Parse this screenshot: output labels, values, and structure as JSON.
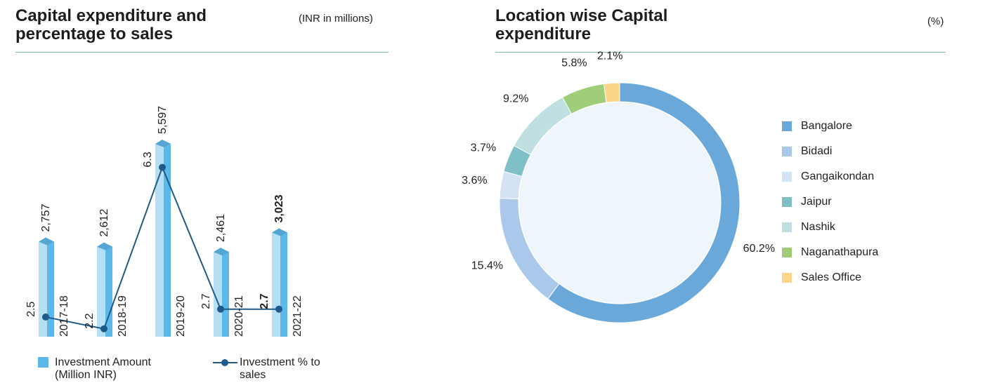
{
  "chart_data": [
    {
      "type": "bar",
      "title": "Capital expenditure and percentage to sales",
      "subtitle": "(INR in millions)",
      "categories": [
        "2017-18",
        "2018-19",
        "2019-20",
        "2020-21",
        "2021-22"
      ],
      "series": [
        {
          "name": "Investment Amount (Million INR)",
          "color": "#5bb8e8",
          "values": [
            2757,
            2612,
            5597,
            2461,
            3023
          ],
          "value_labels": [
            "2,757",
            "2,612",
            "5,597",
            "2,461",
            "3,023"
          ]
        },
        {
          "name": "Investment % to sales",
          "color": "#1f5a8a",
          "axis": "y2",
          "values": [
            2.5,
            2.2,
            6.3,
            2.7,
            2.7
          ]
        }
      ],
      "ylim": [
        0,
        8000
      ],
      "y2lim": [
        2,
        9
      ]
    },
    {
      "type": "pie",
      "title": "Location wise Capital expenditure",
      "subtitle": "(%)",
      "categories": [
        "Bangalore",
        "Bidadi",
        "Gangaikondan",
        "Jaipur",
        "Nashik",
        "Naganathapura",
        "Sales Office"
      ],
      "values": [
        60.2,
        15.4,
        3.6,
        3.7,
        9.2,
        5.8,
        2.1
      ],
      "value_labels": [
        "60.2%",
        "15.4%",
        "3.6%",
        "3.7%",
        "9.2%",
        "5.8%",
        "2.1%"
      ],
      "colors": [
        "#6aa8da",
        "#a9c8ea",
        "#d4e2f4",
        "#7fc0c6",
        "#c0dfe2",
        "#9fcd79",
        "#fbd58a"
      ],
      "legend": "right"
    }
  ]
}
